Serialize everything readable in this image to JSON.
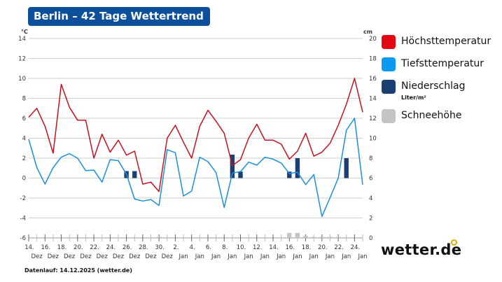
{
  "title": "Berlin – 42 Tage Wettertrend",
  "footer": "Datenlauf: 14.12.2025 (wetter.de)",
  "logo": "wetter.de",
  "legend": [
    {
      "label": "Höchsttemperatur",
      "color": "#e30613"
    },
    {
      "label": "Tiefsttemperatur",
      "color": "#0a9bf0",
      "sub": ""
    },
    {
      "label": "Niederschlag",
      "color": "#1c3f73",
      "sub": "Liter/m²"
    },
    {
      "label": "Schneehöhe",
      "color": "#c4c4c4"
    }
  ],
  "chart_data": {
    "type": "line",
    "title": "Berlin – 42 Tage Wettertrend",
    "y_left": {
      "unit": "°C",
      "range": [
        -6,
        14
      ],
      "ticks": [
        14,
        12,
        10,
        8,
        6,
        4,
        2,
        0,
        -2,
        -4,
        -6
      ]
    },
    "y_right": {
      "unit": "cm",
      "range": [
        0,
        20
      ],
      "ticks": [
        20,
        18,
        16,
        14,
        12,
        10,
        8,
        6,
        4,
        2,
        0
      ]
    },
    "grid": true,
    "legend_position": "right",
    "x_tick_labels": [
      [
        "14.",
        "Dez"
      ],
      [
        "16.",
        "Dez"
      ],
      [
        "18.",
        "Dez"
      ],
      [
        "20.",
        "Dez"
      ],
      [
        "22.",
        "Dez"
      ],
      [
        "24.",
        "Dez"
      ],
      [
        "26.",
        "Dez"
      ],
      [
        "28.",
        "Dez"
      ],
      [
        "30.",
        "Dez"
      ],
      [
        "2.",
        "Jan"
      ],
      [
        "4.",
        "Jan"
      ],
      [
        "6.",
        "Jan"
      ],
      [
        "8.",
        "Jan"
      ],
      [
        "10.",
        "Jan"
      ],
      [
        "12.",
        "Jan"
      ],
      [
        "14.",
        "Jan"
      ],
      [
        "16.",
        "Jan"
      ],
      [
        "18.",
        "Jan"
      ],
      [
        "20.",
        "Jan"
      ],
      [
        "22.",
        "Jan"
      ],
      [
        "24.",
        "Jan"
      ]
    ],
    "x_start": "2025-12-14",
    "x_end": "2026-01-24",
    "series": [
      {
        "name": "Höchsttemperatur",
        "color": "#c8101e",
        "values": [
          6.1,
          7.0,
          5.2,
          2.5,
          9.4,
          7.1,
          5.8,
          5.8,
          2.0,
          4.4,
          2.6,
          3.8,
          2.3,
          2.7,
          -0.6,
          -0.4,
          -1.35,
          4.0,
          5.3,
          3.6,
          2.0,
          5.2,
          6.8,
          5.7,
          4.5,
          1.25,
          1.85,
          4.0,
          5.4,
          3.8,
          3.8,
          3.4,
          1.9,
          2.7,
          4.5,
          2.2,
          2.6,
          3.5,
          5.3,
          7.4,
          10.0,
          6.6
        ]
      },
      {
        "name": "Tiefsttemperatur",
        "color": "#1a90dc",
        "values": [
          3.9,
          1.05,
          -0.6,
          1.05,
          2.1,
          2.45,
          2.0,
          0.75,
          0.8,
          -0.4,
          1.85,
          1.75,
          0.4,
          -2.1,
          -2.3,
          -2.15,
          -2.75,
          2.85,
          2.55,
          -1.8,
          -1.3,
          2.1,
          1.65,
          0.55,
          -2.95,
          0.5,
          0.65,
          1.6,
          1.3,
          2.1,
          1.9,
          1.5,
          0.45,
          0.6,
          -0.65,
          0.35,
          -3.85,
          -1.95,
          0.0,
          4.8,
          6.0,
          -0.65
        ]
      },
      {
        "name": "Niederschlag",
        "color": "#1c3f73",
        "type": "bar",
        "values": [
          0,
          0,
          0,
          0,
          0,
          0,
          0,
          0,
          0,
          0,
          0,
          0,
          0.7,
          0.7,
          0,
          0,
          0,
          0,
          0,
          0,
          0,
          0,
          0,
          0,
          0,
          2.35,
          0.65,
          0,
          0,
          0,
          0,
          0,
          0.65,
          2.0,
          0,
          0,
          0,
          0,
          0,
          2.0,
          0,
          0
        ]
      },
      {
        "name": "Schneehöhe",
        "color": "#c4c4c4",
        "type": "bar",
        "values": [
          0,
          0,
          0,
          0,
          0,
          0,
          0,
          0,
          0,
          0,
          0,
          0,
          0,
          0,
          0,
          0,
          0.1,
          0,
          0,
          0,
          0,
          0,
          0,
          0,
          0,
          0,
          0,
          0,
          0,
          0,
          0,
          0,
          0.5,
          0.5,
          0.2,
          0.1,
          0.1,
          0.1,
          0.1,
          0,
          0,
          0
        ]
      }
    ]
  }
}
